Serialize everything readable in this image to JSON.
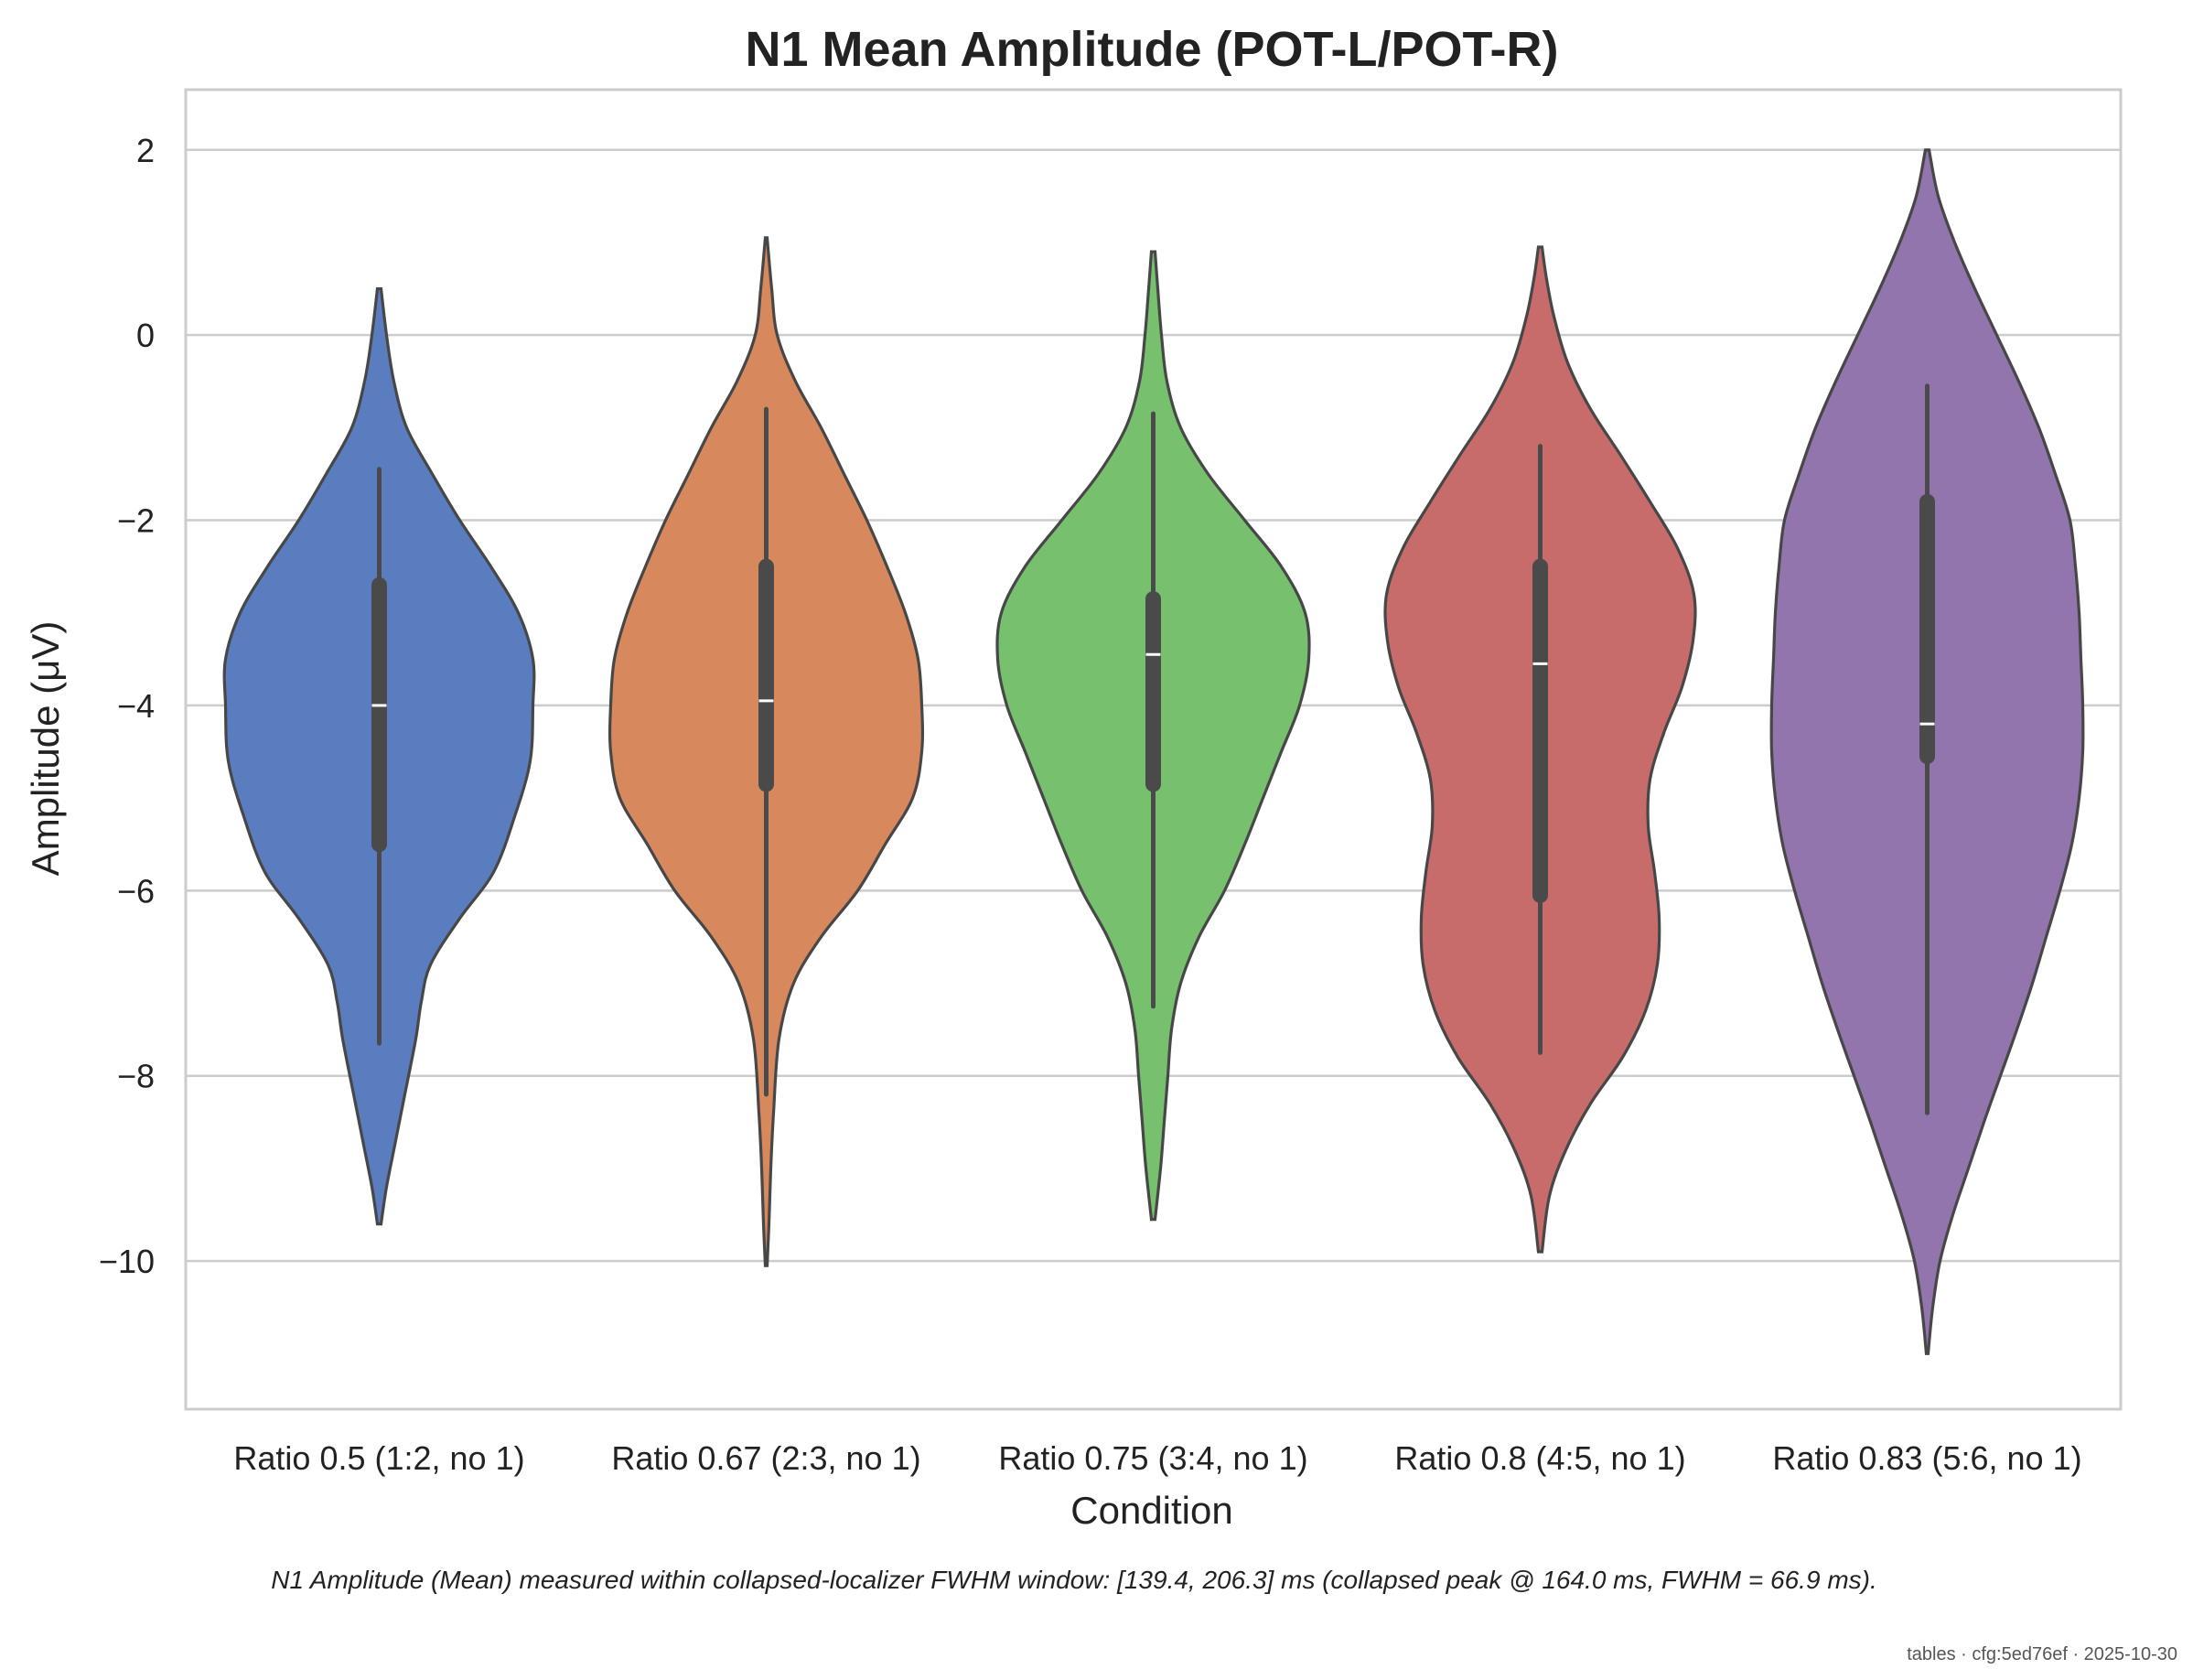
{
  "chart_data": {
    "type": "violin",
    "title": "N1 Mean Amplitude (POT-L/POT-R)",
    "xlabel": "Condition",
    "ylabel": "Amplitude (μV)",
    "ylim": [
      -11.6,
      2.65
    ],
    "yticks": [
      2,
      0,
      -2,
      -4,
      -6,
      -8,
      -10
    ],
    "ytick_labels": [
      "2",
      "0",
      "−2",
      "−4",
      "−6",
      "−8",
      "−10"
    ],
    "grid": "horizontal",
    "categories": [
      "Ratio 0.5 (1:2, no 1)",
      "Ratio 0.67 (2:3, no 1)",
      "Ratio 0.75 (3:4, no 1)",
      "Ratio 0.8 (4:5, no 1)",
      "Ratio 0.83 (5:6, no 1)"
    ],
    "series": [
      {
        "color": "#5a7dc0",
        "min": -9.6,
        "max": 0.5,
        "whisker_low": -7.65,
        "whisker_high": -1.45,
        "q1": -5.5,
        "median": -4.0,
        "q3": -2.7,
        "density": [
          [
            -9.6,
            2
          ],
          [
            -9.2,
            8
          ],
          [
            -8.7,
            18
          ],
          [
            -8.2,
            28
          ],
          [
            -7.6,
            40
          ],
          [
            -7.2,
            46
          ],
          [
            -6.8,
            56
          ],
          [
            -6.3,
            88
          ],
          [
            -5.8,
            125
          ],
          [
            -5.2,
            148
          ],
          [
            -4.6,
            165
          ],
          [
            -4.0,
            168
          ],
          [
            -3.5,
            168
          ],
          [
            -3.0,
            152
          ],
          [
            -2.5,
            122
          ],
          [
            -2.0,
            88
          ],
          [
            -1.5,
            58
          ],
          [
            -1.0,
            30
          ],
          [
            -0.5,
            16
          ],
          [
            0.0,
            8
          ],
          [
            0.5,
            2
          ]
        ]
      },
      {
        "color": "#d7895d",
        "min": -10.05,
        "max": 1.05,
        "whisker_low": -8.2,
        "whisker_high": -0.8,
        "q1": -4.85,
        "median": -3.95,
        "q3": -2.5,
        "density": [
          [
            -10.05,
            1
          ],
          [
            -9.6,
            3
          ],
          [
            -9.0,
            5
          ],
          [
            -8.4,
            8
          ],
          [
            -7.6,
            14
          ],
          [
            -7.0,
            30
          ],
          [
            -6.5,
            60
          ],
          [
            -6.0,
            100
          ],
          [
            -5.5,
            130
          ],
          [
            -5.0,
            160
          ],
          [
            -4.5,
            170
          ],
          [
            -4.0,
            170
          ],
          [
            -3.5,
            166
          ],
          [
            -3.0,
            152
          ],
          [
            -2.5,
            132
          ],
          [
            -2.0,
            110
          ],
          [
            -1.5,
            85
          ],
          [
            -1.0,
            60
          ],
          [
            -0.5,
            32
          ],
          [
            0.0,
            12
          ],
          [
            0.5,
            6
          ],
          [
            1.05,
            1
          ]
        ]
      },
      {
        "color": "#76c06e",
        "min": -9.55,
        "max": 0.9,
        "whisker_low": -7.25,
        "whisker_high": -0.85,
        "q1": -4.85,
        "median": -3.45,
        "q3": -2.85,
        "density": [
          [
            -9.55,
            2
          ],
          [
            -9.0,
            8
          ],
          [
            -8.5,
            12
          ],
          [
            -8.0,
            16
          ],
          [
            -7.5,
            20
          ],
          [
            -7.0,
            30
          ],
          [
            -6.5,
            50
          ],
          [
            -6.0,
            78
          ],
          [
            -5.5,
            100
          ],
          [
            -5.0,
            120
          ],
          [
            -4.5,
            140
          ],
          [
            -4.0,
            160
          ],
          [
            -3.5,
            170
          ],
          [
            -3.0,
            166
          ],
          [
            -2.5,
            140
          ],
          [
            -2.0,
            100
          ],
          [
            -1.5,
            60
          ],
          [
            -1.0,
            30
          ],
          [
            -0.5,
            15
          ],
          [
            0.0,
            9
          ],
          [
            0.5,
            5
          ],
          [
            0.9,
            2
          ]
        ]
      },
      {
        "color": "#c76c6b",
        "min": -9.9,
        "max": 0.95,
        "whisker_low": -7.75,
        "whisker_high": -1.2,
        "q1": -6.05,
        "median": -3.55,
        "q3": -2.5,
        "density": [
          [
            -9.9,
            2
          ],
          [
            -9.3,
            10
          ],
          [
            -8.8,
            28
          ],
          [
            -8.3,
            55
          ],
          [
            -7.8,
            90
          ],
          [
            -7.3,
            115
          ],
          [
            -6.8,
            128
          ],
          [
            -6.3,
            130
          ],
          [
            -5.8,
            125
          ],
          [
            -5.3,
            118
          ],
          [
            -4.8,
            120
          ],
          [
            -4.3,
            135
          ],
          [
            -3.8,
            155
          ],
          [
            -3.3,
            167
          ],
          [
            -2.8,
            168
          ],
          [
            -2.3,
            150
          ],
          [
            -1.8,
            120
          ],
          [
            -1.3,
            88
          ],
          [
            -0.8,
            55
          ],
          [
            -0.3,
            30
          ],
          [
            0.2,
            15
          ],
          [
            0.6,
            7
          ],
          [
            0.95,
            2
          ]
        ]
      },
      {
        "color": "#9375ad",
        "min": -11.0,
        "max": 2.0,
        "whisker_low": -8.4,
        "whisker_high": -0.55,
        "q1": -4.55,
        "median": -4.2,
        "q3": -1.8,
        "density": [
          [
            -11.0,
            1
          ],
          [
            -10.5,
            6
          ],
          [
            -10.0,
            14
          ],
          [
            -9.5,
            28
          ],
          [
            -9.0,
            45
          ],
          [
            -8.5,
            62
          ],
          [
            -8.0,
            80
          ],
          [
            -7.5,
            98
          ],
          [
            -7.0,
            115
          ],
          [
            -6.5,
            130
          ],
          [
            -6.0,
            145
          ],
          [
            -5.5,
            158
          ],
          [
            -5.0,
            166
          ],
          [
            -4.5,
            170
          ],
          [
            -4.0,
            170
          ],
          [
            -3.5,
            168
          ],
          [
            -3.0,
            166
          ],
          [
            -2.5,
            162
          ],
          [
            -2.0,
            156
          ],
          [
            -1.5,
            140
          ],
          [
            -1.0,
            122
          ],
          [
            -0.5,
            100
          ],
          [
            0.0,
            76
          ],
          [
            0.5,
            52
          ],
          [
            1.0,
            30
          ],
          [
            1.5,
            12
          ],
          [
            2.0,
            2
          ]
        ]
      }
    ]
  },
  "caption": "N1 Amplitude (Mean) measured within collapsed-localizer FWHM window: [139.4, 206.3] ms (collapsed peak @ 164.0 ms, FWHM = 66.9 ms).",
  "footer": "tables · cfg:5ed76ef · 2025-10-30",
  "colors": {
    "grid": "#cccccc",
    "frame": "#cccccc",
    "outline": "#474747",
    "box": "#4a4a4a",
    "median": "#ffffff"
  }
}
